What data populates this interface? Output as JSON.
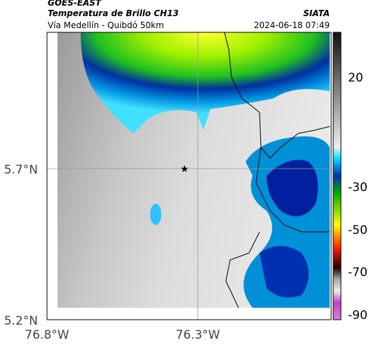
{
  "header": {
    "satellite": "GOES-EAST",
    "product": "Temperatura de Brillo CH13",
    "source": "SIATA",
    "region": "Vía Medellín - Quibdó 50km",
    "timestamp": "2024-06-18 07:49"
  },
  "axes": {
    "y_ticks": [
      "5.7°N",
      "5.2°N"
    ],
    "x_ticks": [
      "76.8°W",
      "76.3°W"
    ]
  },
  "colorbar": {
    "ticks": [
      "20",
      "-30",
      "-50",
      "-70",
      "-90"
    ]
  }
}
